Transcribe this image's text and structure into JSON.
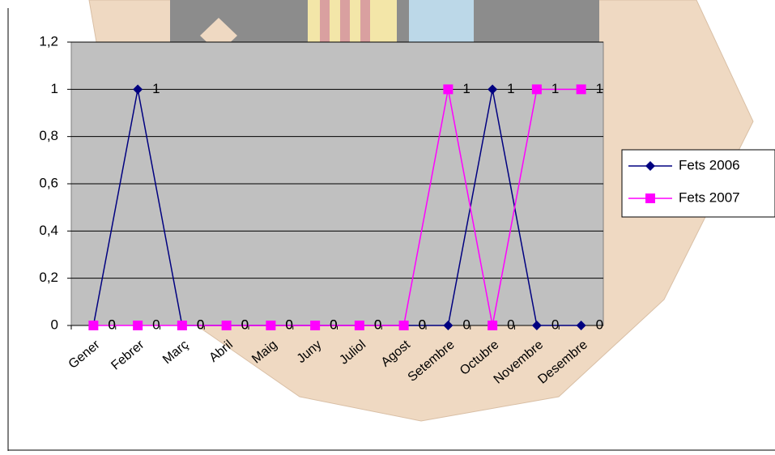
{
  "chart_data": {
    "type": "line",
    "categories": [
      "Gener",
      "Febrer",
      "Març",
      "Abril",
      "Maig",
      "Juny",
      "Juliol",
      "Agost",
      "Setembre",
      "Octubre",
      "Novembre",
      "Desembre"
    ],
    "series": [
      {
        "name": "Fets 2006",
        "color": "#000080",
        "marker": "diamond",
        "values": [
          0,
          1,
          0,
          0,
          0,
          0,
          0,
          0,
          0,
          1,
          0,
          0
        ]
      },
      {
        "name": "Fets 2007",
        "color": "#ff00ff",
        "marker": "square",
        "values": [
          0,
          0,
          0,
          0,
          0,
          0,
          0,
          0,
          1,
          0,
          1,
          1
        ]
      }
    ],
    "ylim": [
      0,
      1.2
    ],
    "yticks": [
      0,
      {
        "value": 0.2,
        "label": "0,2"
      },
      {
        "value": 0.4,
        "label": "0,4"
      },
      {
        "value": 0.6,
        "label": "0,6"
      },
      {
        "value": 0.8,
        "label": "0,8"
      },
      1,
      {
        "value": 1.2,
        "label": "1,2"
      }
    ],
    "grid": true,
    "legend": "right",
    "data_labels": true,
    "plot_background": "#c0c0c0"
  }
}
